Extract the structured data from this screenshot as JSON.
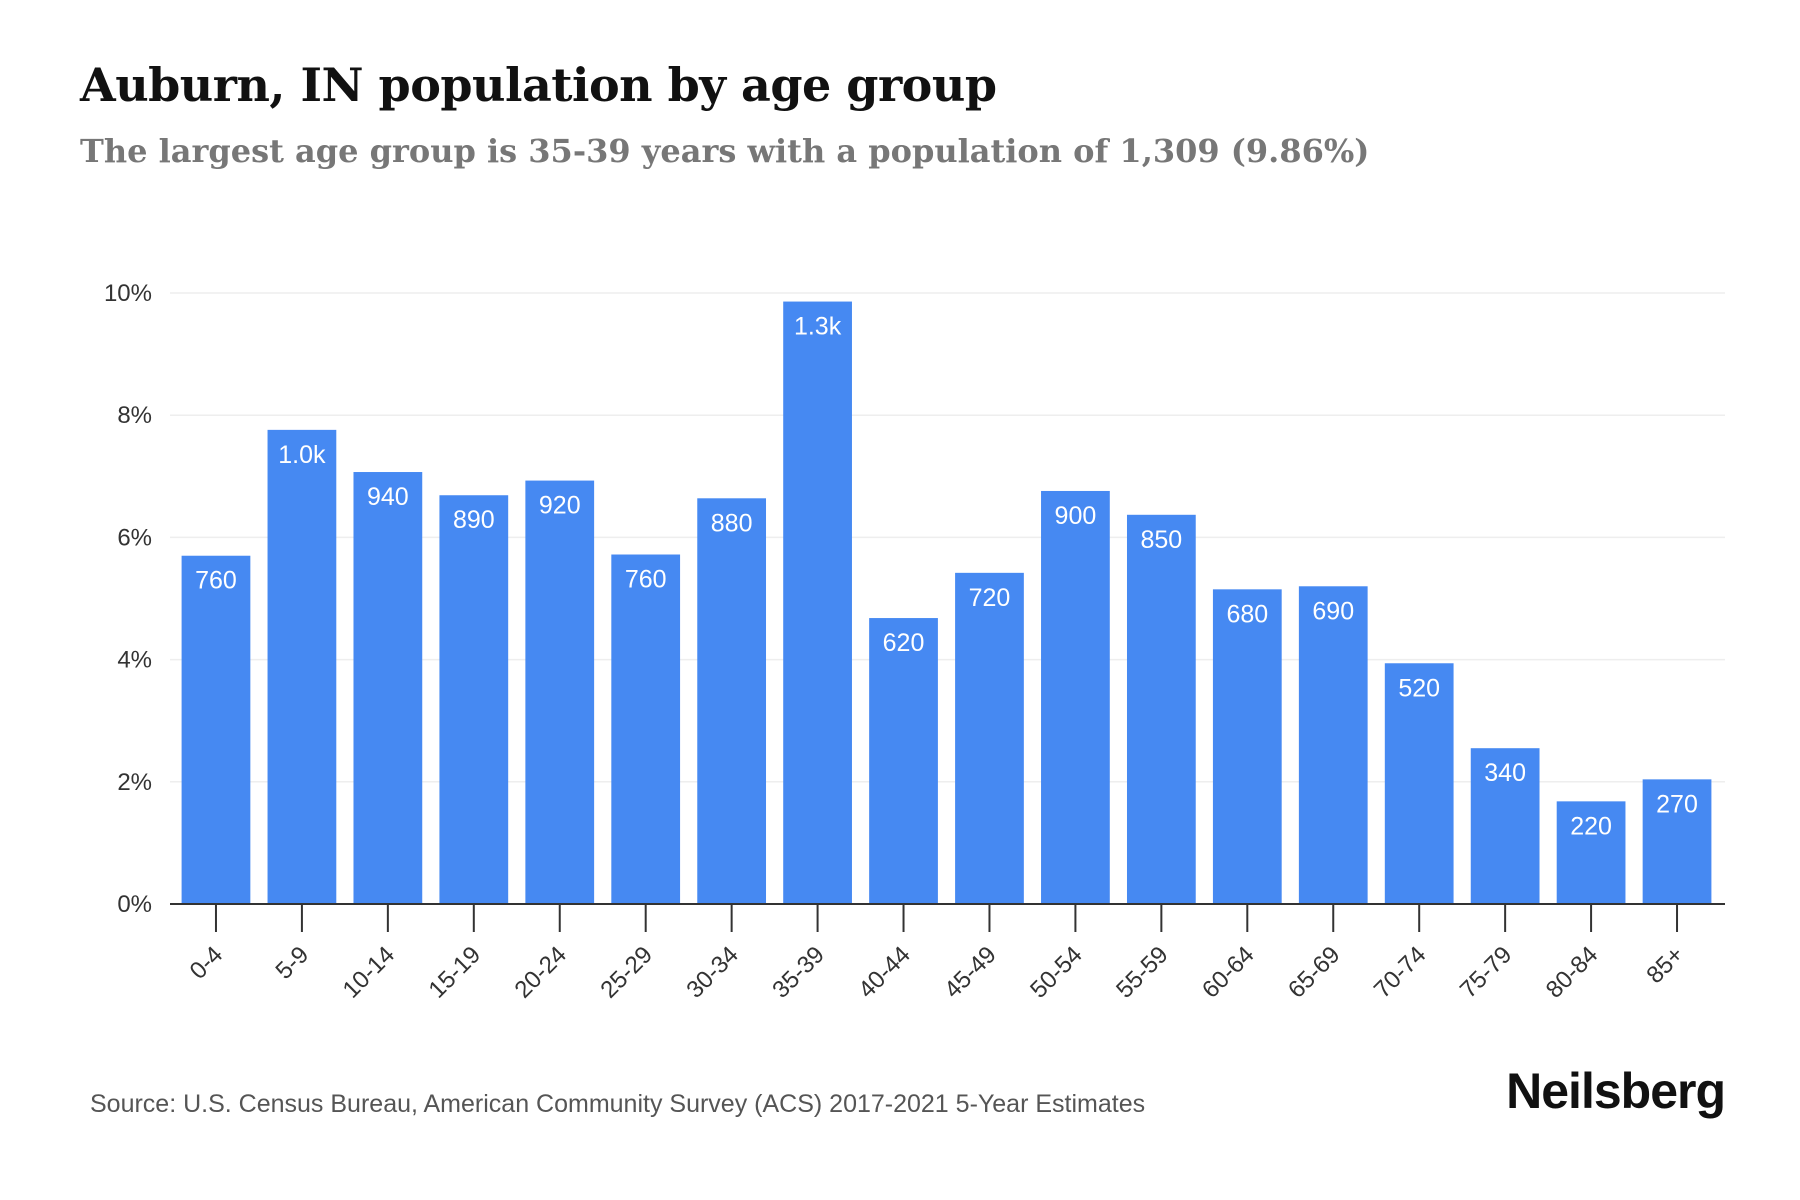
{
  "chart_data": {
    "type": "bar",
    "title": "Auburn, IN population by age group",
    "subtitle": "The largest age group is 35-39 years with a population of 1,309 (9.86%)",
    "xlabel": "",
    "ylabel": "",
    "categories": [
      "0-4",
      "5-9",
      "10-14",
      "15-19",
      "20-24",
      "25-29",
      "30-34",
      "35-39",
      "40-44",
      "45-49",
      "50-54",
      "55-59",
      "60-64",
      "65-69",
      "70-74",
      "75-79",
      "80-84",
      "85+"
    ],
    "values": [
      5.7,
      7.76,
      7.07,
      6.69,
      6.93,
      5.72,
      6.64,
      9.86,
      4.68,
      5.42,
      6.76,
      6.37,
      5.15,
      5.2,
      3.94,
      2.55,
      1.68,
      2.04
    ],
    "data_labels": [
      "760",
      "1.0k",
      "940",
      "890",
      "920",
      "760",
      "880",
      "1.3k",
      "620",
      "720",
      "900",
      "850",
      "680",
      "690",
      "520",
      "340",
      "220",
      "270"
    ],
    "ylim": [
      0,
      10
    ],
    "yticks": [
      0,
      2,
      4,
      6,
      8,
      10
    ],
    "ytick_labels": [
      "0%",
      "2%",
      "4%",
      "6%",
      "8%",
      "10%"
    ],
    "grid": true,
    "bar_color": "#4689f2"
  },
  "footer": {
    "source": "Source: U.S. Census Bureau, American Community Survey (ACS) 2017-2021 5-Year Estimates",
    "brand": "Neilsberg"
  }
}
